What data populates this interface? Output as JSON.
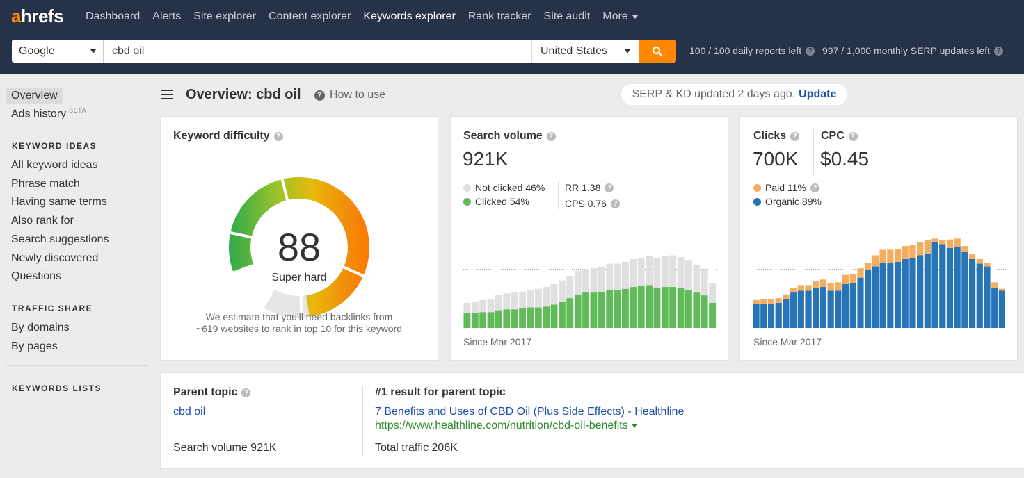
{
  "brand": {
    "logo_a": "a",
    "logo_rest": "hrefs",
    "accent": "#ff8800",
    "nav_bg": "#263248"
  },
  "nav": {
    "items": [
      "Dashboard",
      "Alerts",
      "Site explorer",
      "Content explorer",
      "Keywords explorer",
      "Rank tracker",
      "Site audit"
    ],
    "more_label": "More",
    "active": "Keywords explorer"
  },
  "search": {
    "engine": "Google",
    "keyword": "cbd oil",
    "country": "United States",
    "daily_reports": "100 / 100 daily reports left",
    "monthly_serp": "997 / 1,000 monthly SERP updates left"
  },
  "sidebar": {
    "overview": "Overview",
    "ads_history": "Ads history",
    "beta": "BETA",
    "keyword_ideas_heading": "KEYWORD IDEAS",
    "keyword_ideas": [
      "All keyword ideas",
      "Phrase match",
      "Having same terms",
      "Also rank for",
      "Search suggestions",
      "Newly discovered",
      "Questions"
    ],
    "traffic_share_heading": "TRAFFIC SHARE",
    "traffic_share": [
      "By domains",
      "By pages"
    ],
    "keywords_lists_heading": "KEYWORDS LISTS"
  },
  "header": {
    "title": "Overview: cbd oil",
    "how_to_use": "How to use",
    "serp_status": "SERP & KD updated 2 days ago.",
    "update_label": "Update"
  },
  "keyword_difficulty": {
    "title": "Keyword difficulty",
    "value": "88",
    "value_fraction": 0.88,
    "label": "Super hard",
    "note_line1": "We estimate that you'll need backlinks from",
    "note_line2": "~619 websites to rank in top 10 for this keyword"
  },
  "search_volume": {
    "title": "Search volume",
    "value": "921K",
    "not_clicked": "Not clicked 46%",
    "clicked": "Clicked 54%",
    "rr": "RR 1.38",
    "cps": "CPS 0.76",
    "since": "Since Mar 2017",
    "colors": {
      "not_clicked": "#e0e0e0",
      "clicked": "#62bb5b"
    }
  },
  "clicks": {
    "title": "Clicks",
    "value": "700K",
    "cpc_title": "CPC",
    "cpc_value": "$0.45",
    "paid": "Paid 11%",
    "organic": "Organic 89%",
    "since": "Since Mar 2017",
    "colors": {
      "paid": "#f6ad5f",
      "organic": "#2775b6"
    }
  },
  "parent_topic": {
    "title": "Parent topic",
    "topic": "cbd oil",
    "volume": "Search volume 921K",
    "result_title": "#1 result for parent topic",
    "result_link": "7 Benefits and Uses of CBD Oil (Plus Side Effects) - Healthline",
    "result_url": "https://www.healthline.com/nutrition/cbd-oil-benefits",
    "total_traffic": "Total traffic 206K"
  },
  "chart_data": [
    {
      "type": "bar",
      "stacked": true,
      "series": [
        {
          "name": "Clicked",
          "color": "#62bb5b",
          "values": [
            16,
            16,
            17,
            17,
            19,
            20,
            20,
            21,
            22,
            22,
            23,
            25,
            28,
            32,
            36,
            38,
            38,
            39,
            41,
            41,
            42,
            44,
            45,
            46,
            43,
            44,
            44,
            43,
            41,
            38,
            35,
            27
          ]
        },
        {
          "name": "Not clicked",
          "color": "#e0e0e0",
          "values": [
            11,
            12,
            13,
            14,
            16,
            17,
            18,
            18,
            19,
            20,
            21,
            22,
            23,
            24,
            25,
            25,
            26,
            27,
            28,
            28,
            29,
            30,
            30,
            31,
            32,
            33,
            34,
            33,
            32,
            30,
            27,
            21
          ]
        }
      ]
    },
    {
      "type": "bar",
      "stacked": true,
      "series": [
        {
          "name": "Organic",
          "color": "#2775b6",
          "values": [
            26,
            26,
            26,
            27,
            31,
            38,
            40,
            40,
            43,
            44,
            40,
            40,
            47,
            48,
            54,
            62,
            66,
            70,
            70,
            71,
            74,
            75,
            78,
            80,
            92,
            90,
            86,
            87,
            82,
            74,
            69,
            66,
            43,
            40
          ]
        },
        {
          "name": "Paid",
          "color": "#f6ad5f",
          "values": [
            4,
            5,
            5,
            5,
            5,
            5,
            6,
            6,
            7,
            8,
            8,
            9,
            10,
            10,
            10,
            8,
            12,
            14,
            14,
            14,
            14,
            14,
            14,
            14,
            4,
            4,
            9,
            9,
            6,
            5,
            5,
            4,
            6,
            2
          ]
        }
      ]
    }
  ]
}
